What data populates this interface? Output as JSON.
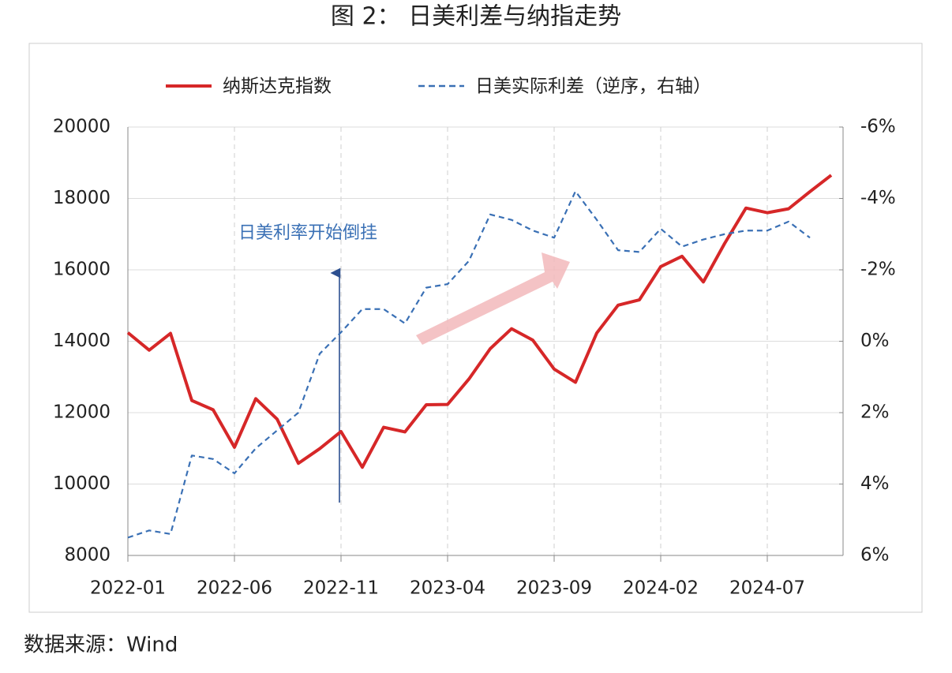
{
  "chart_data": {
    "type": "line",
    "title": "图 2： 日美利差与纳指走势",
    "source": "数据来源：Wind",
    "annotation": "日美利率开始倒挂",
    "categories": [
      "2022-01",
      null,
      null,
      null,
      null,
      "2022-06",
      null,
      null,
      null,
      null,
      "2022-11",
      null,
      null,
      null,
      null,
      "2023-04",
      null,
      null,
      null,
      null,
      "2023-09",
      null,
      null,
      null,
      null,
      "2024-02",
      null,
      null,
      null,
      null,
      "2024-07",
      null,
      null,
      null
    ],
    "series": [
      {
        "name": "纳斯达克指数",
        "color": "#d62728",
        "values": [
          14240,
          13750,
          14220,
          12340,
          12080,
          11030,
          12390,
          11820,
          10580,
          10990,
          11470,
          10470,
          11590,
          11460,
          12220,
          12230,
          12940,
          13790,
          14350,
          14030,
          13220,
          12850,
          14230,
          15010,
          15160,
          16090,
          16380,
          15660,
          16740,
          17730,
          17600,
          17710,
          18190,
          18650
        ]
      },
      {
        "name": "日美实际利差（逆序，右轴）",
        "color": "#3a70b5",
        "axis": "y2",
        "values": [
          5.5,
          5.3,
          5.4,
          3.2,
          3.3,
          3.7,
          3.0,
          2.5,
          2.0,
          0.35,
          -0.25,
          -0.9,
          -0.9,
          -0.5,
          -1.5,
          -1.6,
          -2.25,
          -3.55,
          -3.4,
          -3.1,
          -2.9,
          -4.2,
          -3.4,
          -2.55,
          -2.5,
          -3.15,
          -2.65,
          -2.85,
          -3.0,
          -3.1,
          -3.1,
          -3.35,
          -2.9,
          null
        ]
      }
    ],
    "ylim": [
      8000,
      20000
    ],
    "yticks": [
      8000,
      10000,
      12000,
      14000,
      16000,
      18000,
      20000
    ],
    "y2lim": [
      6,
      -6
    ],
    "y2ticks": [
      {
        "value": 6,
        "label": "6%"
      },
      {
        "value": 4,
        "label": "4%"
      },
      {
        "value": 2,
        "label": "2%"
      },
      {
        "value": 0,
        "label": "0%"
      },
      {
        "value": -2,
        "label": "-2%"
      },
      {
        "value": -4,
        "label": "-4%"
      },
      {
        "value": -6,
        "label": "-6%"
      }
    ],
    "grid": true,
    "legend": "top"
  }
}
